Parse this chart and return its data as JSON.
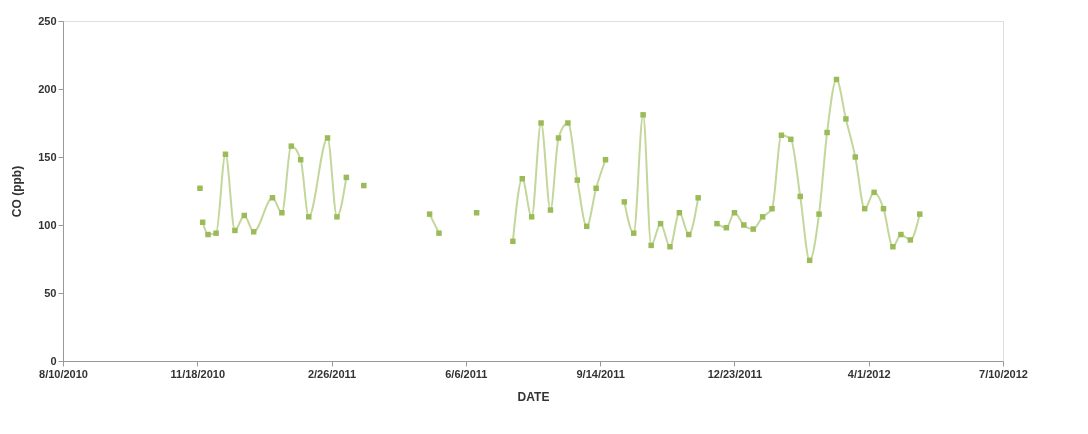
{
  "chart_data": {
    "type": "line",
    "xlabel": "DATE",
    "ylabel": "CO (ppb)",
    "marker": "square",
    "line_style": "solid",
    "grid": false,
    "x": [
      "2010-11-20",
      "2010-11-21",
      "2010-11-22",
      "2010-11-26",
      "2010-12-02",
      "2010-12-09",
      "2010-12-16",
      "2010-12-23",
      "2010-12-30",
      "2011-01-13",
      "2011-01-20",
      "2011-01-27",
      "2011-02-03",
      "2011-02-09",
      "2011-02-23",
      "2011-03-02",
      "2011-03-09",
      "2011-03-15",
      "2011-03-22",
      "2011-04-15",
      "2011-05-10",
      "2011-05-17",
      "2011-05-30",
      "2011-06-14",
      "2011-06-28",
      "2011-07-11",
      "2011-07-18",
      "2011-07-25",
      "2011-08-01",
      "2011-08-08",
      "2011-08-14",
      "2011-08-21",
      "2011-08-28",
      "2011-09-04",
      "2011-09-11",
      "2011-09-18",
      "2011-09-25",
      "2011-10-02",
      "2011-10-09",
      "2011-10-16",
      "2011-10-22",
      "2011-10-29",
      "2011-11-05",
      "2011-11-12",
      "2011-11-19",
      "2011-11-26",
      "2011-12-03",
      "2011-12-10",
      "2011-12-17",
      "2011-12-23",
      "2011-12-30",
      "2012-01-06",
      "2012-01-13",
      "2012-01-20",
      "2012-01-27",
      "2012-02-03",
      "2012-02-10",
      "2012-02-17",
      "2012-02-24",
      "2012-03-01",
      "2012-03-08",
      "2012-03-15",
      "2012-03-22",
      "2012-03-29",
      "2012-04-05",
      "2012-04-12",
      "2012-04-19",
      "2012-04-25",
      "2012-05-02",
      "2012-05-09"
    ],
    "series": [
      {
        "color": "#9bbb59",
        "values": [
          127,
          null,
          102,
          93,
          94,
          152,
          96,
          107,
          95,
          120,
          109,
          158,
          148,
          106,
          164,
          106,
          135,
          null,
          129,
          null,
          108,
          94,
          null,
          109,
          null,
          88,
          134,
          106,
          175,
          111,
          164,
          175,
          133,
          99,
          127,
          148,
          null,
          117,
          94,
          181,
          85,
          101,
          84,
          109,
          93,
          120,
          null,
          101,
          98,
          109,
          100,
          97,
          106,
          112,
          166,
          163,
          121,
          74,
          108,
          168,
          207,
          178,
          150,
          112,
          124,
          112,
          84,
          93,
          89,
          108
        ]
      }
    ],
    "xlim": [
      "2010-08-10",
      "2012-07-10"
    ],
    "xticks": [
      {
        "value": "2010-08-10",
        "label": "8/10/2010"
      },
      {
        "value": "2010-11-18",
        "label": "11/18/2010"
      },
      {
        "value": "2011-02-26",
        "label": "2/26/2011"
      },
      {
        "value": "2011-06-06",
        "label": "6/6/2011"
      },
      {
        "value": "2011-09-14",
        "label": "9/14/2011"
      },
      {
        "value": "2011-12-23",
        "label": "12/23/2011"
      },
      {
        "value": "2012-04-01",
        "label": "4/1/2012"
      },
      {
        "value": "2012-07-10",
        "label": "7/10/2012"
      }
    ],
    "ylim": [
      0,
      250
    ],
    "yticks": [
      0,
      50,
      100,
      150,
      200,
      250
    ]
  }
}
